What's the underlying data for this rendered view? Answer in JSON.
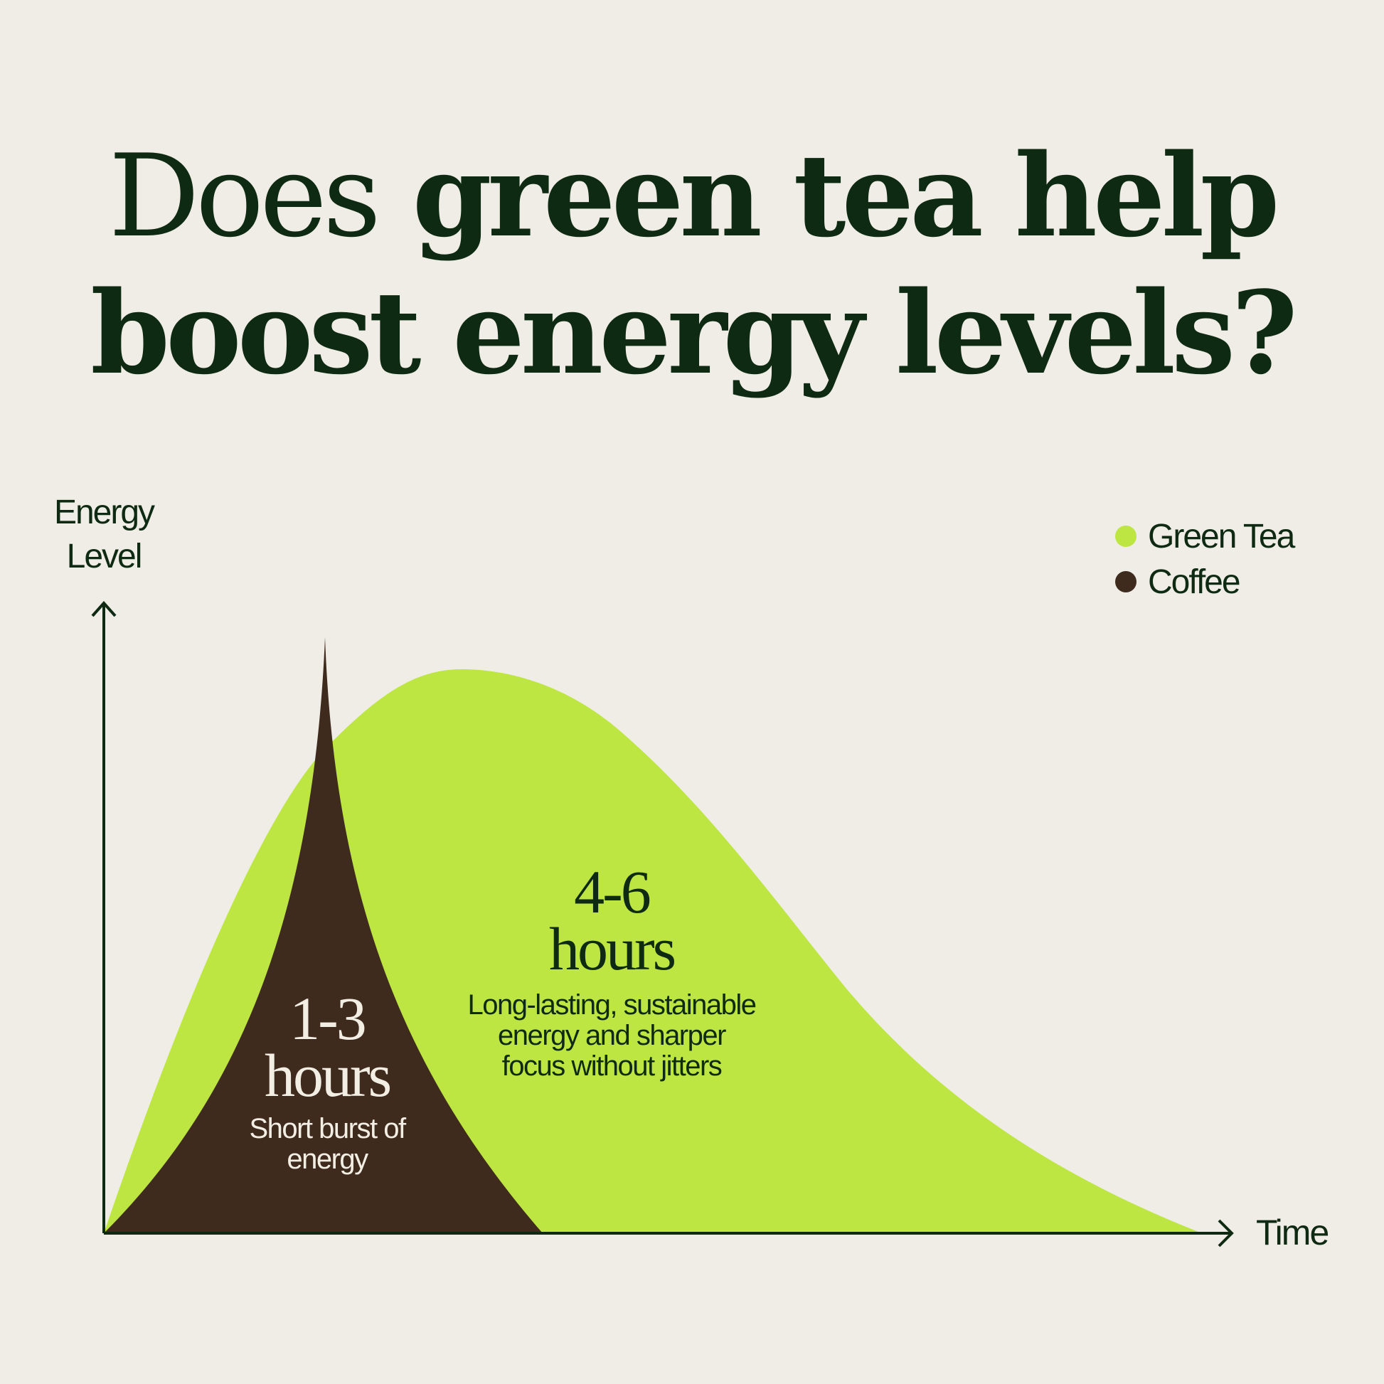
{
  "title": {
    "line1_light": "Does",
    "line1_bold": "green tea help",
    "line2": "boost energy levels?"
  },
  "colors": {
    "background": "#EFEDE6",
    "text": "#0F2A12",
    "green_tea": "#BDE642",
    "coffee": "#3E2B1E"
  },
  "chart_data": {
    "type": "area",
    "title": "Does green tea help boost energy levels?",
    "xlabel": "Time",
    "ylabel": "Energy Level",
    "grid": false,
    "legend_position": "top-right",
    "series": [
      {
        "name": "Green Tea",
        "color": "#BDE642",
        "duration": "4-6",
        "unit": "hours",
        "description": "Long-lasting, sustainable energy and sharper focus without jitters"
      },
      {
        "name": "Coffee",
        "color": "#3E2B1E",
        "duration": "1-3",
        "unit": "hours",
        "description": "Short burst of energy"
      }
    ]
  },
  "annotations": {
    "coffee": {
      "duration": "1-3",
      "unit": "hours",
      "line1": "Short burst of",
      "line2": "energy"
    },
    "tea": {
      "duration": "4-6",
      "unit": "hours",
      "line1": "Long-lasting, sustainable",
      "line2": "energy and sharper",
      "line3": "focus without jitters"
    }
  }
}
